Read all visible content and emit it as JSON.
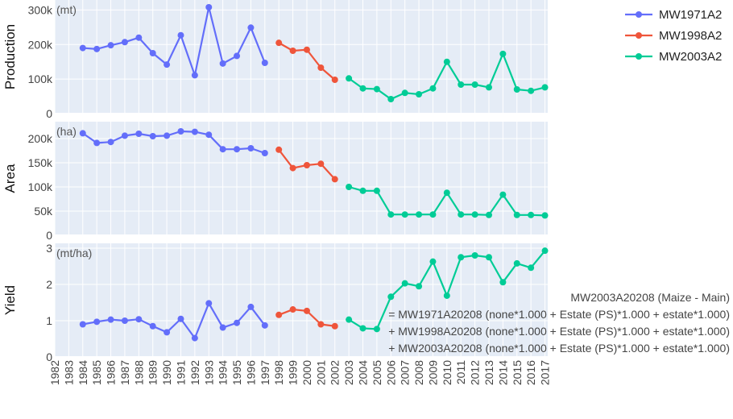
{
  "chart_data": {
    "type": "line",
    "x": [
      1984,
      1985,
      1986,
      1987,
      1988,
      1989,
      1990,
      1991,
      1992,
      1993,
      1994,
      1995,
      1996,
      1997,
      1998,
      1999,
      2000,
      2001,
      2002,
      2003,
      2004,
      2005,
      2006,
      2007,
      2008,
      2009,
      2010,
      2011,
      2012,
      2013,
      2014,
      2015,
      2016,
      2017
    ],
    "x_tick_labels": [
      "1982",
      "1983",
      "1984",
      "1985",
      "1986",
      "1987",
      "1988",
      "1989",
      "1990",
      "1991",
      "1992",
      "1993",
      "1994",
      "1995",
      "1996",
      "1997",
      "1998",
      "1999",
      "2000",
      "2001",
      "2002",
      "2003",
      "2004",
      "2005",
      "2006",
      "2007",
      "2008",
      "2009",
      "2010",
      "2011",
      "2012",
      "2013",
      "2014",
      "2015",
      "2016",
      "2017"
    ],
    "series": [
      {
        "name": "MW1971A2",
        "color": "#636efa",
        "x_start": 0,
        "x_end": 13
      },
      {
        "name": "MW1998A2",
        "color": "#ef553b",
        "x_start": 14,
        "x_end": 18
      },
      {
        "name": "MW2003A2",
        "color": "#00cc96",
        "x_start": 19,
        "x_end": 33
      }
    ],
    "panels": [
      {
        "ylabel": "Production",
        "unit": "(mt)",
        "ylim": [
          0,
          315000
        ],
        "yticks": [
          0,
          100000,
          200000,
          300000
        ],
        "ytick_labels": [
          "0",
          "100k",
          "200k",
          "300k"
        ],
        "values": [
          190000,
          187000,
          198000,
          207000,
          220000,
          175000,
          142000,
          227000,
          111000,
          308000,
          145000,
          167000,
          249000,
          147000,
          205000,
          182000,
          185000,
          133000,
          98000,
          102000,
          73000,
          71000,
          42000,
          60000,
          56000,
          73000,
          150000,
          84000,
          84000,
          76000,
          173000,
          70000,
          66000,
          76000
        ]
      },
      {
        "ylabel": "Area",
        "unit": "(ha)",
        "ylim": [
          0,
          225000
        ],
        "yticks": [
          0,
          50000,
          100000,
          150000,
          200000
        ],
        "ytick_labels": [
          "0",
          "50k",
          "100k",
          "150k",
          "200k"
        ],
        "values": [
          211000,
          191000,
          193000,
          206000,
          210000,
          205000,
          206000,
          215000,
          214000,
          208000,
          178000,
          178000,
          180000,
          170000,
          177000,
          139000,
          145000,
          148000,
          116000,
          100000,
          92000,
          92000,
          43000,
          43000,
          43000,
          43000,
          88000,
          43000,
          43000,
          42000,
          84000,
          42000,
          42000,
          41000
        ]
      },
      {
        "ylabel": "Yield",
        "unit": "(mt/ha)",
        "ylim": [
          0,
          3
        ],
        "yticks": [
          0,
          1,
          2,
          3
        ],
        "ytick_labels": [
          "0",
          "1",
          "2",
          "3"
        ],
        "values": [
          0.9,
          0.97,
          1.03,
          1.0,
          1.04,
          0.85,
          0.68,
          1.05,
          0.52,
          1.48,
          0.81,
          0.94,
          1.38,
          0.87,
          1.16,
          1.31,
          1.27,
          0.9,
          0.85,
          1.03,
          0.79,
          0.77,
          1.66,
          2.03,
          1.95,
          2.63,
          1.69,
          2.75,
          2.8,
          2.75,
          2.06,
          2.58,
          2.46,
          2.93
        ]
      }
    ],
    "annotation": [
      "MW2003A20208 (Maize - Main)",
      "= MW1971A20208 (none*1.000 + Estate (PS)*1.000 + estate*1.000)",
      "+ MW1998A20208 (none*1.000 + Estate (PS)*1.000 + estate*1.000)",
      "+ MW2003A20208 (none*1.000 + Estate (PS)*1.000 + estate*1.000)"
    ]
  }
}
